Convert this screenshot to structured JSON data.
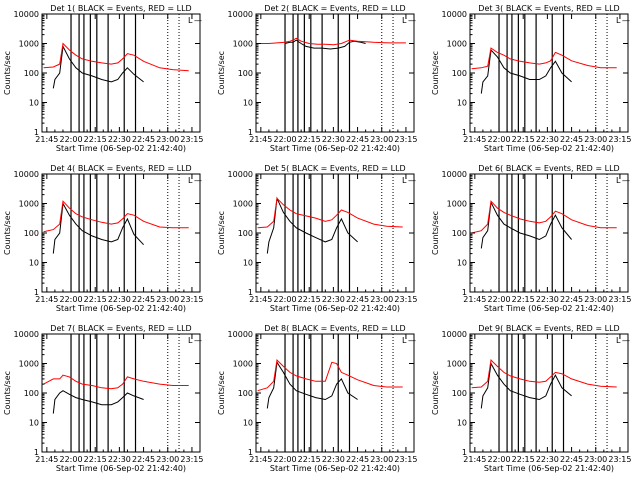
{
  "colors": {
    "events": "#000000",
    "lld": "#ff0000",
    "axis": "#000000",
    "background": "#ffffff"
  },
  "shared": {
    "xlabel": "Start Time (06-Sep-02 21:42:40)",
    "ylabel": "Counts/sec",
    "xticks": [
      "21:45",
      "22:00",
      "22:15",
      "22:30",
      "22:45",
      "23:00",
      "23:15"
    ],
    "xtick_minutes": [
      0,
      15,
      30,
      45,
      60,
      75,
      90
    ],
    "xlim_minutes": [
      -3,
      95
    ],
    "yticks": [
      "1",
      "10",
      "100",
      "1000",
      "10000"
    ],
    "ylim": [
      1,
      10000
    ],
    "yscale": "log",
    "events_legend_label": "L",
    "events_marker": "—"
  },
  "chart_data": [
    {
      "type": "line",
      "title": "Det  1( BLACK = Events, RED = LLD",
      "x_unit": "minutes since 21:45",
      "series": [
        {
          "name": "Events",
          "color": "#000000",
          "x": [
            4,
            5,
            8,
            10,
            14,
            18,
            22,
            28,
            34,
            40,
            44,
            47,
            50,
            54,
            60
          ],
          "values": [
            30,
            60,
            100,
            800,
            300,
            150,
            100,
            80,
            60,
            50,
            60,
            100,
            150,
            90,
            50
          ]
        },
        {
          "name": "LLD",
          "color": "#ff0000",
          "x": [
            -2,
            4,
            8,
            10,
            14,
            18,
            22,
            28,
            34,
            40,
            44,
            47,
            50,
            54,
            60,
            70,
            78,
            88
          ],
          "values": [
            150,
            160,
            200,
            1000,
            600,
            400,
            300,
            250,
            220,
            200,
            220,
            300,
            450,
            400,
            250,
            150,
            130,
            120
          ]
        }
      ],
      "vertical_markers_minutes": [
        15,
        20,
        23,
        27,
        31,
        38,
        48,
        55
      ],
      "dotted_markers_minutes": [
        75,
        82
      ]
    },
    {
      "type": "line",
      "title": "Det  2( BLACK = Events, RED = LLD",
      "x_unit": "minutes since 21:45",
      "series": [
        {
          "name": "Events",
          "color": "#000000",
          "x": [
            15,
            18,
            20,
            22,
            25,
            28,
            33,
            38,
            43,
            48,
            52,
            55,
            58,
            62,
            65
          ],
          "values": [
            1000,
            1100,
            1100,
            1300,
            1000,
            800,
            700,
            700,
            650,
            700,
            800,
            1100,
            1200,
            1100,
            1000
          ]
        },
        {
          "name": "LLD",
          "color": "#ff0000",
          "x": [
            -2,
            5,
            10,
            15,
            18,
            20,
            22,
            25,
            30,
            35,
            40,
            45,
            50,
            55,
            60,
            65,
            70,
            80,
            90
          ],
          "values": [
            1000,
            1000,
            1050,
            1100,
            1200,
            1300,
            1500,
            1200,
            1000,
            950,
            950,
            900,
            1000,
            1300,
            1200,
            1150,
            1100,
            1050,
            1050
          ]
        }
      ],
      "vertical_markers_minutes": [
        15,
        20,
        23,
        27,
        31,
        38,
        48,
        55
      ],
      "dotted_markers_minutes": [
        75,
        82
      ]
    },
    {
      "type": "line",
      "title": "Det  3( BLACK = Events, RED = LLD",
      "x_unit": "minutes since 21:45",
      "series": [
        {
          "name": "Events",
          "color": "#000000",
          "x": [
            4,
            5,
            8,
            10,
            14,
            18,
            22,
            28,
            34,
            40,
            44,
            47,
            50,
            54,
            60
          ],
          "values": [
            20,
            50,
            80,
            600,
            350,
            150,
            100,
            80,
            60,
            60,
            80,
            150,
            250,
            100,
            50
          ]
        },
        {
          "name": "LLD",
          "color": "#ff0000",
          "x": [
            -2,
            4,
            8,
            10,
            14,
            18,
            22,
            28,
            34,
            40,
            44,
            47,
            50,
            54,
            60,
            70,
            78,
            88
          ],
          "values": [
            140,
            150,
            170,
            700,
            500,
            400,
            300,
            250,
            220,
            200,
            220,
            260,
            500,
            400,
            260,
            180,
            150,
            150
          ]
        }
      ],
      "vertical_markers_minutes": [
        15,
        20,
        23,
        27,
        31,
        38,
        48,
        55
      ],
      "dotted_markers_minutes": [
        75,
        82
      ]
    },
    {
      "type": "line",
      "title": "Det  4( BLACK = Events, RED = LLD",
      "x_unit": "minutes since 21:45",
      "series": [
        {
          "name": "Events",
          "color": "#000000",
          "x": [
            4,
            5,
            8,
            10,
            14,
            18,
            22,
            28,
            34,
            40,
            44,
            47,
            50,
            54,
            60
          ],
          "values": [
            20,
            60,
            100,
            1000,
            400,
            200,
            120,
            80,
            60,
            50,
            60,
            150,
            300,
            90,
            40
          ]
        },
        {
          "name": "LLD",
          "color": "#ff0000",
          "x": [
            -2,
            4,
            8,
            10,
            14,
            18,
            22,
            28,
            34,
            40,
            44,
            47,
            50,
            54,
            60,
            70,
            78,
            88
          ],
          "values": [
            110,
            130,
            200,
            1200,
            700,
            450,
            350,
            280,
            230,
            200,
            220,
            300,
            450,
            400,
            250,
            160,
            150,
            150
          ]
        }
      ],
      "vertical_markers_minutes": [
        15,
        20,
        23,
        27,
        31,
        38,
        48,
        55
      ],
      "dotted_markers_minutes": [
        75,
        82
      ]
    },
    {
      "type": "line",
      "title": "Det  5( BLACK = Events, RED = LLD",
      "x_unit": "minutes since 21:45",
      "series": [
        {
          "name": "Events",
          "color": "#000000",
          "x": [
            4,
            5,
            8,
            10,
            14,
            18,
            22,
            28,
            34,
            40,
            44,
            47,
            50,
            54,
            60
          ],
          "values": [
            20,
            50,
            150,
            1500,
            500,
            250,
            150,
            100,
            70,
            50,
            60,
            150,
            300,
            100,
            50
          ]
        },
        {
          "name": "LLD",
          "color": "#ff0000",
          "x": [
            -2,
            4,
            8,
            10,
            14,
            18,
            22,
            28,
            34,
            40,
            44,
            47,
            50,
            54,
            60,
            70,
            78,
            88
          ],
          "values": [
            150,
            160,
            250,
            1500,
            900,
            600,
            450,
            380,
            320,
            250,
            280,
            400,
            600,
            500,
            320,
            200,
            170,
            160
          ]
        }
      ],
      "vertical_markers_minutes": [
        15,
        20,
        23,
        27,
        31,
        38,
        48,
        55
      ],
      "dotted_markers_minutes": [
        75,
        82
      ]
    },
    {
      "type": "line",
      "title": "Det  6( BLACK = Events, RED = LLD",
      "x_unit": "minutes since 21:45",
      "series": [
        {
          "name": "Events",
          "color": "#000000",
          "x": [
            4,
            5,
            8,
            10,
            14,
            18,
            22,
            28,
            34,
            40,
            44,
            47,
            50,
            54,
            60
          ],
          "values": [
            30,
            70,
            120,
            1100,
            400,
            200,
            150,
            100,
            80,
            60,
            80,
            200,
            400,
            150,
            60
          ]
        },
        {
          "name": "LLD",
          "color": "#ff0000",
          "x": [
            -2,
            4,
            8,
            10,
            14,
            18,
            22,
            28,
            34,
            40,
            44,
            47,
            50,
            54,
            60,
            70,
            78,
            88
          ],
          "values": [
            100,
            120,
            200,
            1200,
            700,
            500,
            400,
            300,
            250,
            220,
            250,
            350,
            550,
            450,
            280,
            180,
            150,
            150
          ]
        }
      ],
      "vertical_markers_minutes": [
        15,
        20,
        23,
        27,
        31,
        38,
        48,
        55
      ],
      "dotted_markers_minutes": [
        75,
        82
      ]
    },
    {
      "type": "line",
      "title": "Det  7( BLACK = Events, RED = LLD",
      "x_unit": "minutes since 21:45",
      "series": [
        {
          "name": "Events",
          "color": "#000000",
          "x": [
            4,
            5,
            8,
            10,
            14,
            18,
            22,
            28,
            34,
            40,
            44,
            47,
            50,
            54,
            60
          ],
          "values": [
            20,
            60,
            100,
            120,
            90,
            70,
            60,
            50,
            40,
            40,
            50,
            70,
            100,
            80,
            60
          ]
        },
        {
          "name": "LLD",
          "color": "#ff0000",
          "x": [
            -2,
            4,
            8,
            10,
            14,
            18,
            22,
            28,
            34,
            40,
            44,
            47,
            50,
            54,
            60,
            70,
            78,
            88
          ],
          "values": [
            200,
            300,
            300,
            400,
            350,
            250,
            200,
            180,
            150,
            140,
            150,
            200,
            350,
            300,
            250,
            200,
            180,
            180
          ]
        }
      ],
      "vertical_markers_minutes": [
        15,
        20,
        23,
        27,
        31,
        38,
        48,
        55
      ],
      "dotted_markers_minutes": [
        75,
        82
      ]
    },
    {
      "type": "line",
      "title": "Det  8( BLACK = Events, RED = LLD",
      "x_unit": "minutes since 21:45",
      "series": [
        {
          "name": "Events",
          "color": "#000000",
          "x": [
            4,
            5,
            8,
            10,
            14,
            18,
            22,
            28,
            34,
            40,
            44,
            47,
            50,
            54,
            60
          ],
          "values": [
            30,
            70,
            150,
            1100,
            500,
            200,
            120,
            90,
            70,
            60,
            80,
            200,
            300,
            100,
            60
          ]
        },
        {
          "name": "LLD",
          "color": "#ff0000",
          "x": [
            -2,
            4,
            8,
            10,
            14,
            18,
            22,
            28,
            34,
            40,
            44,
            47,
            50,
            54,
            60,
            70,
            78,
            88
          ],
          "values": [
            120,
            150,
            250,
            1300,
            800,
            500,
            380,
            300,
            250,
            250,
            1100,
            1000,
            500,
            400,
            280,
            180,
            160,
            160
          ]
        }
      ],
      "vertical_markers_minutes": [
        15,
        20,
        23,
        27,
        31,
        38,
        48,
        55
      ],
      "dotted_markers_minutes": [
        75,
        82
      ]
    },
    {
      "type": "line",
      "title": "Det  9( BLACK = Events, RED = LLD",
      "x_unit": "minutes since 21:45",
      "series": [
        {
          "name": "Events",
          "color": "#000000",
          "x": [
            4,
            5,
            8,
            10,
            14,
            18,
            22,
            28,
            34,
            40,
            44,
            47,
            50,
            54,
            60
          ],
          "values": [
            30,
            80,
            150,
            1000,
            400,
            200,
            120,
            90,
            70,
            60,
            80,
            200,
            400,
            150,
            80
          ]
        },
        {
          "name": "LLD",
          "color": "#ff0000",
          "x": [
            -2,
            4,
            8,
            10,
            14,
            18,
            22,
            28,
            34,
            40,
            44,
            47,
            50,
            54,
            60,
            70,
            78,
            88
          ],
          "values": [
            150,
            160,
            250,
            1300,
            800,
            500,
            380,
            300,
            250,
            230,
            250,
            350,
            500,
            450,
            300,
            200,
            170,
            160
          ]
        }
      ],
      "vertical_markers_minutes": [
        15,
        20,
        23,
        27,
        31,
        38,
        48,
        55
      ],
      "dotted_markers_minutes": [
        75,
        82
      ]
    }
  ]
}
